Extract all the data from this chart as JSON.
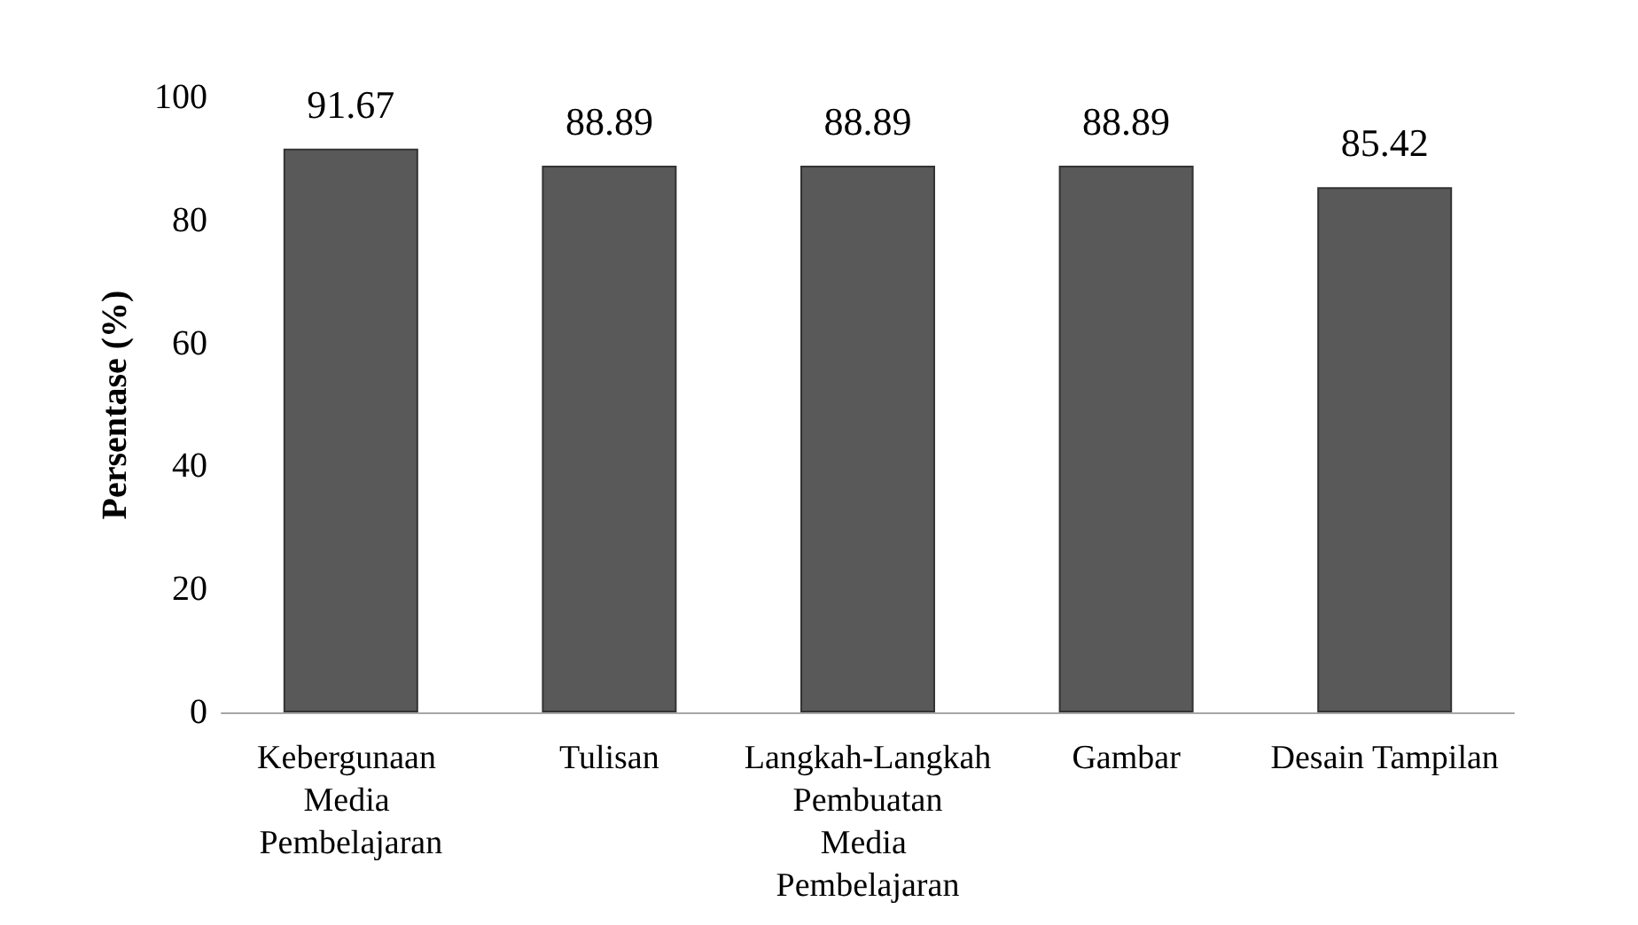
{
  "chart_data": {
    "type": "bar",
    "ylabel": "Persentase (%)",
    "categories": [
      "Kebergunaan Media Pembelajaran",
      "Tulisan",
      "Langkah-Langkah Pembuatan Media Pembelajaran",
      "Gambar",
      "Desain Tampilan"
    ],
    "values": [
      91.67,
      88.89,
      88.89,
      88.89,
      85.42
    ],
    "color": "#595959",
    "ylim": [
      0,
      100
    ],
    "yticks": [
      0,
      20,
      40,
      60,
      80,
      100
    ],
    "grid": false,
    "data_labels": true
  }
}
